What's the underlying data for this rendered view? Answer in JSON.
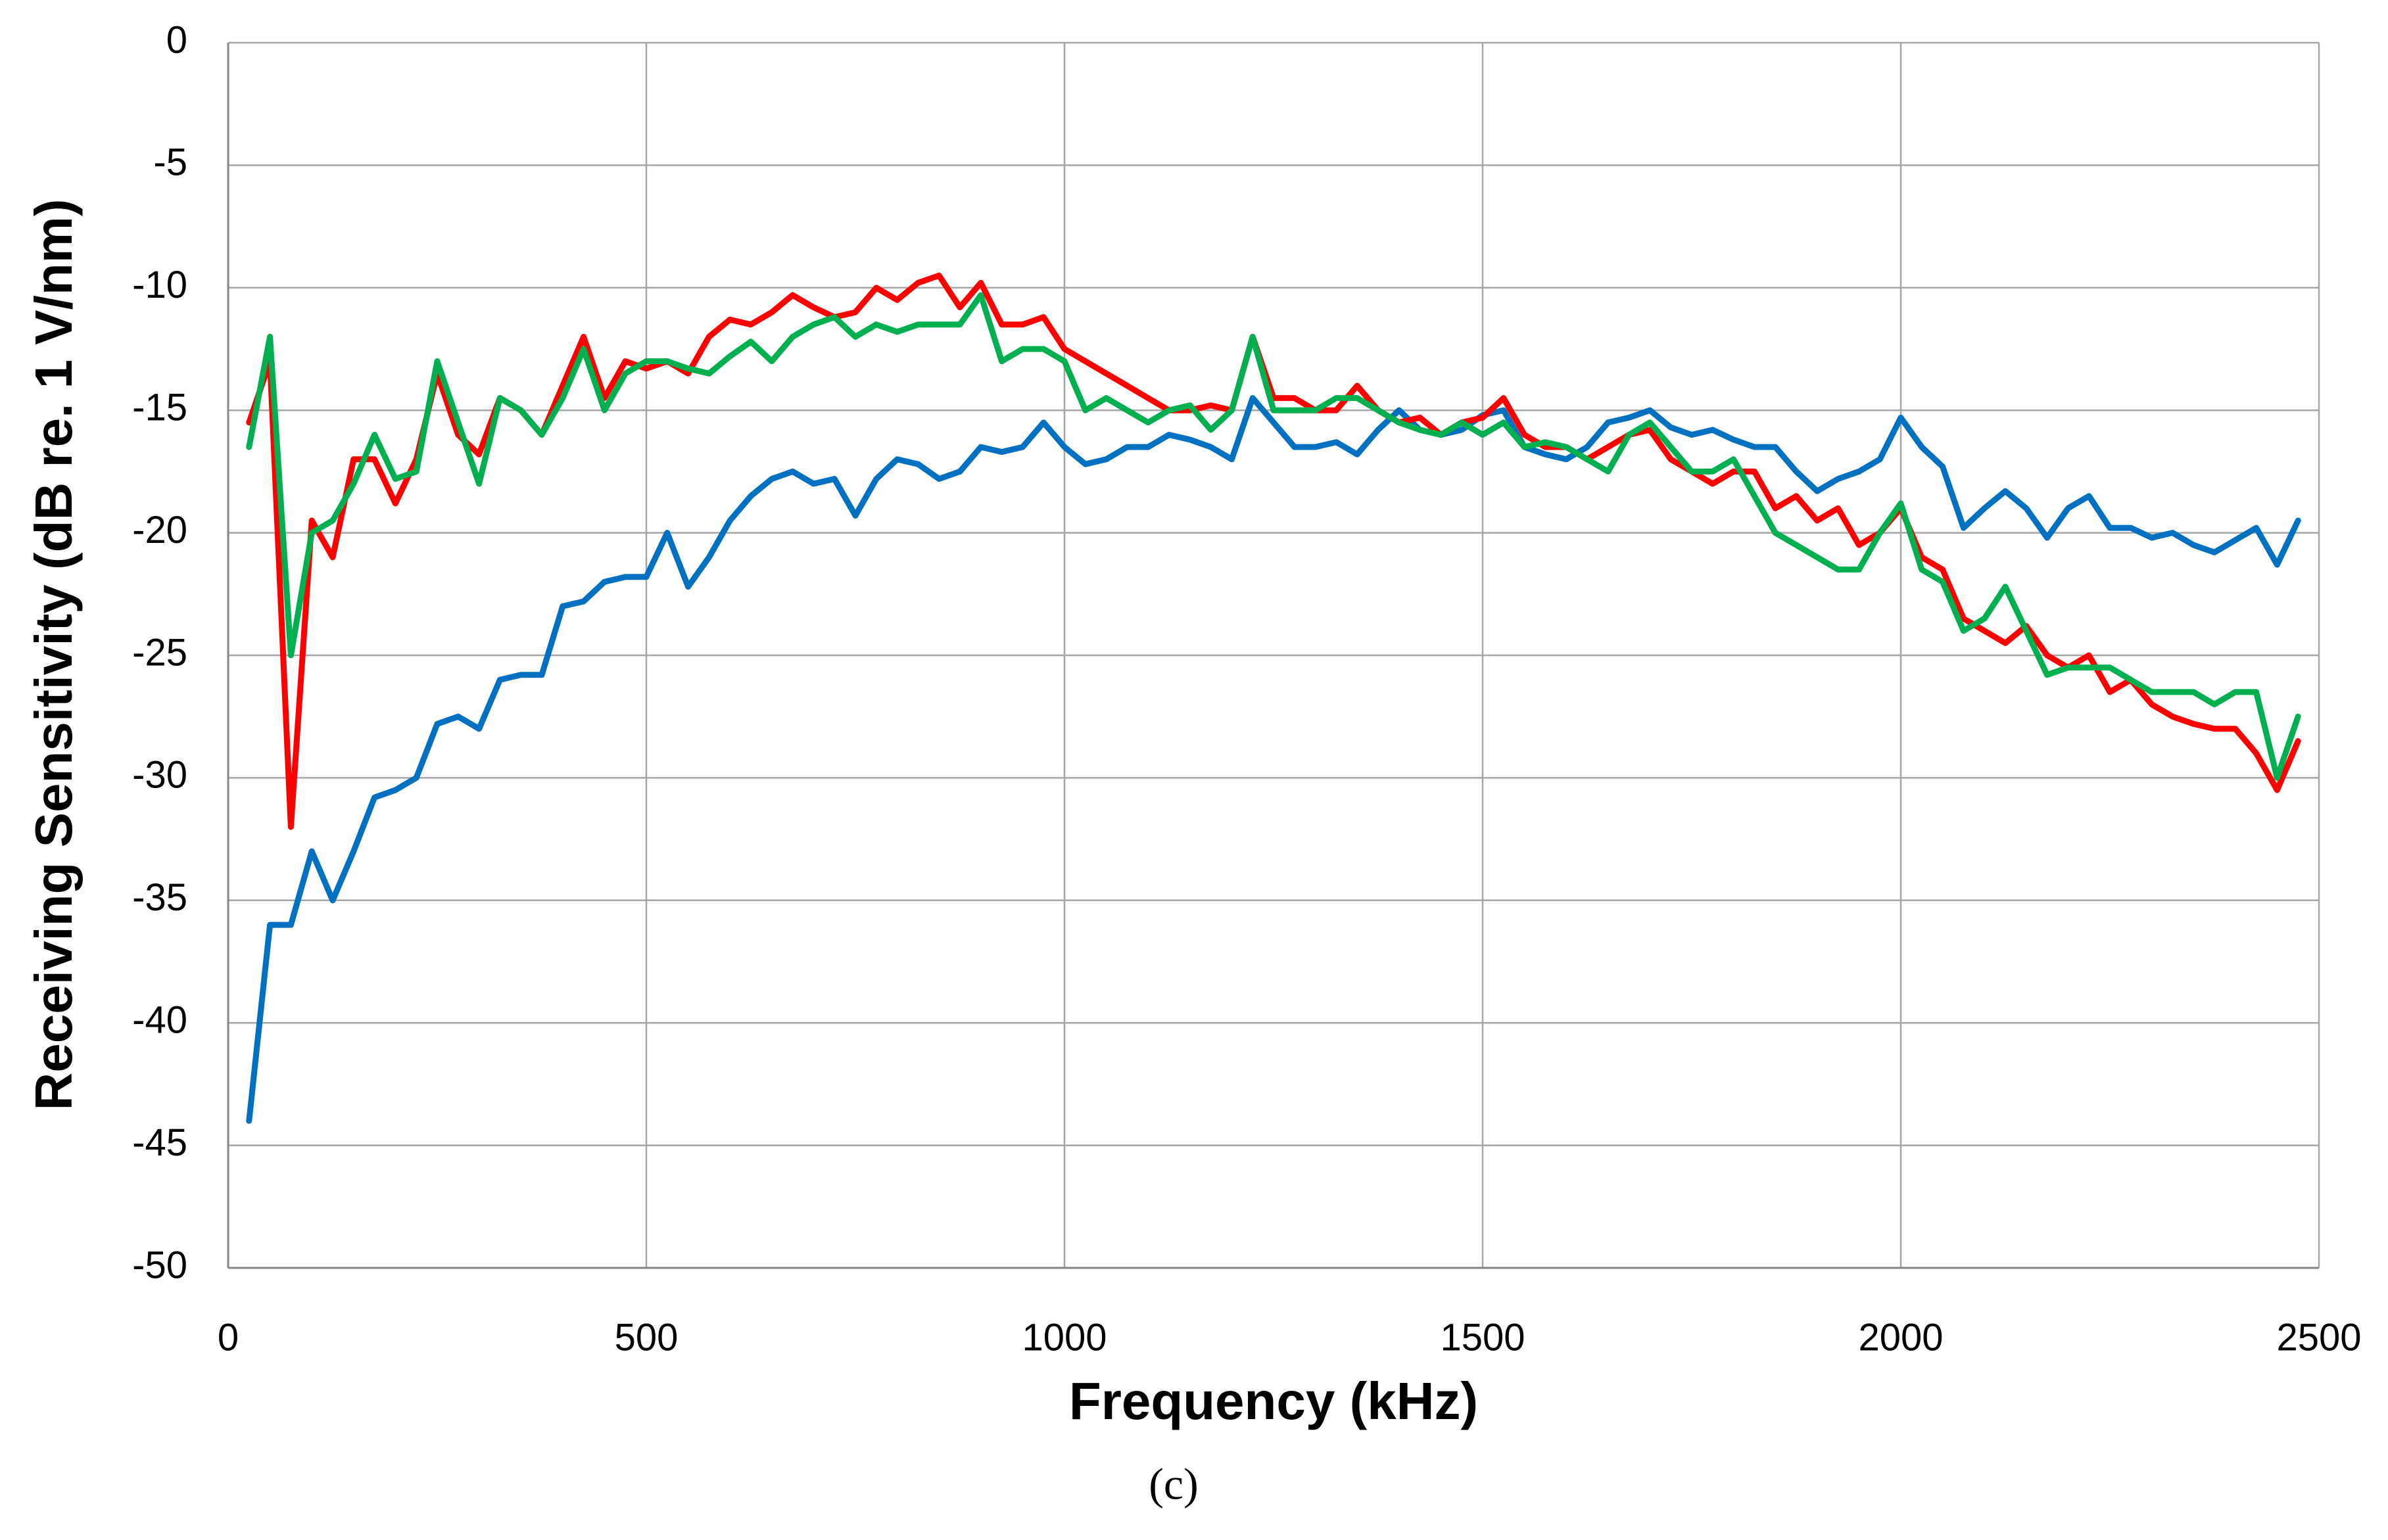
{
  "chart_data": {
    "type": "line",
    "xlabel": "Frequency  (kHz)",
    "ylabel": "Receiving Sensitivity (dB re. 1 V/nm)",
    "caption": "(c)",
    "xlim": [
      0,
      2500
    ],
    "xticks": [
      0,
      500,
      1000,
      1500,
      2000,
      2500
    ],
    "ylim": [
      -50,
      0
    ],
    "yticks": [
      0,
      -5,
      -10,
      -15,
      -20,
      -25,
      -30,
      -35,
      -40,
      -45,
      -50
    ],
    "grid": true,
    "x": [
      25,
      50,
      75,
      100,
      125,
      150,
      175,
      200,
      225,
      250,
      275,
      300,
      325,
      350,
      375,
      400,
      425,
      450,
      475,
      500,
      525,
      550,
      575,
      600,
      625,
      650,
      675,
      700,
      725,
      750,
      775,
      800,
      825,
      850,
      875,
      900,
      925,
      950,
      975,
      1000,
      1025,
      1050,
      1075,
      1100,
      1125,
      1150,
      1175,
      1200,
      1225,
      1250,
      1275,
      1300,
      1325,
      1350,
      1375,
      1400,
      1425,
      1450,
      1475,
      1500,
      1525,
      1550,
      1575,
      1600,
      1625,
      1650,
      1675,
      1700,
      1725,
      1750,
      1775,
      1800,
      1825,
      1850,
      1875,
      1900,
      1925,
      1950,
      1975,
      2000,
      2025,
      2050,
      2075,
      2100,
      2125,
      2150,
      2175,
      2200,
      2225,
      2250,
      2275,
      2300,
      2325,
      2350,
      2375,
      2400,
      2425,
      2450,
      2475
    ],
    "series": [
      {
        "color": "#0070c0",
        "values": [
          -44,
          -36,
          -36,
          -33,
          -35,
          -33,
          -30.8,
          -30.5,
          -30,
          -27.8,
          -27.5,
          -28,
          -26,
          -25.8,
          -25.8,
          -23,
          -22.8,
          -22,
          -21.8,
          -21.8,
          -20,
          -22.2,
          -21,
          -19.5,
          -18.5,
          -17.8,
          -17.5,
          -18,
          -17.8,
          -19.3,
          -17.8,
          -17,
          -17.2,
          -17.8,
          -17.5,
          -16.5,
          -16.7,
          -16.5,
          -15.5,
          -16.5,
          -17.2,
          -17,
          -16.5,
          -16.5,
          -16,
          -16.2,
          -16.5,
          -17,
          -14.5,
          -15.5,
          -16.5,
          -16.5,
          -16.3,
          -16.8,
          -15.8,
          -15,
          -15.8,
          -16,
          -15.8,
          -15.2,
          -15,
          -16.5,
          -16.8,
          -17,
          -16.5,
          -15.5,
          -15.3,
          -15,
          -15.7,
          -16,
          -15.8,
          -16.2,
          -16.5,
          -16.5,
          -17.5,
          -18.3,
          -17.8,
          -17.5,
          -17,
          -15.3,
          -16.5,
          -17.3,
          -19.8,
          -19,
          -18.3,
          -19,
          -20.2,
          -19,
          -18.5,
          -19.8,
          -19.8,
          -20.2,
          -20,
          -20.5,
          -20.8,
          -20.3,
          -19.8,
          -21.3,
          -19.5
        ]
      },
      {
        "color": "#ff0000",
        "values": [
          -15.5,
          -13,
          -32,
          -19.5,
          -21,
          -17,
          -17,
          -18.8,
          -17,
          -13.5,
          -16,
          -16.8,
          -14.5,
          -15,
          -16,
          -14,
          -12,
          -14.5,
          -13,
          -13.3,
          -13,
          -13.5,
          -12,
          -11.3,
          -11.5,
          -11,
          -10.3,
          -10.8,
          -11.2,
          -11,
          -10,
          -10.5,
          -9.8,
          -9.5,
          -10.8,
          -9.8,
          -11.5,
          -11.5,
          -11.2,
          -12.5,
          -13,
          -13.5,
          -14,
          -14.5,
          -15,
          -15,
          -14.8,
          -15,
          -12,
          -14.5,
          -14.5,
          -15,
          -15,
          -14,
          -15,
          -15.5,
          -15.3,
          -16,
          -15.5,
          -15.3,
          -14.5,
          -16,
          -16.5,
          -16.5,
          -17,
          -16.5,
          -16,
          -15.8,
          -17,
          -17.5,
          -18,
          -17.5,
          -17.5,
          -19,
          -18.5,
          -19.5,
          -19,
          -20.5,
          -20,
          -19,
          -21,
          -21.5,
          -23.5,
          -24,
          -24.5,
          -23.8,
          -25,
          -25.5,
          -25,
          -26.5,
          -26,
          -27,
          -27.5,
          -27.8,
          -28,
          -28,
          -29,
          -30.5,
          -28.5
        ]
      },
      {
        "color": "#00b050",
        "values": [
          -16.5,
          -12,
          -25,
          -20,
          -19.5,
          -18,
          -16,
          -17.8,
          -17.5,
          -13,
          -15.5,
          -18,
          -14.5,
          -15,
          -16,
          -14.5,
          -12.5,
          -15,
          -13.5,
          -13,
          -13,
          -13.3,
          -13.5,
          -12.8,
          -12.2,
          -13,
          -12,
          -11.5,
          -11.2,
          -12,
          -11.5,
          -11.8,
          -11.5,
          -11.5,
          -11.5,
          -10.3,
          -13,
          -12.5,
          -12.5,
          -13,
          -15,
          -14.5,
          -15,
          -15.5,
          -15,
          -14.8,
          -15.8,
          -15,
          -12,
          -15,
          -15,
          -15,
          -14.5,
          -14.5,
          -15,
          -15.5,
          -15.8,
          -16,
          -15.5,
          -16,
          -15.5,
          -16.5,
          -16.3,
          -16.5,
          -17,
          -17.5,
          -16,
          -15.5,
          -16.5,
          -17.5,
          -17.5,
          -17,
          -18.5,
          -20,
          -20.5,
          -21,
          -21.5,
          -21.5,
          -20,
          -18.8,
          -21.5,
          -22,
          -24,
          -23.5,
          -22.2,
          -24,
          -25.8,
          -25.5,
          -25.5,
          -25.5,
          -26,
          -26.5,
          -26.5,
          -26.5,
          -27,
          -26.5,
          -26.5,
          -30,
          -27.5
        ]
      }
    ]
  }
}
